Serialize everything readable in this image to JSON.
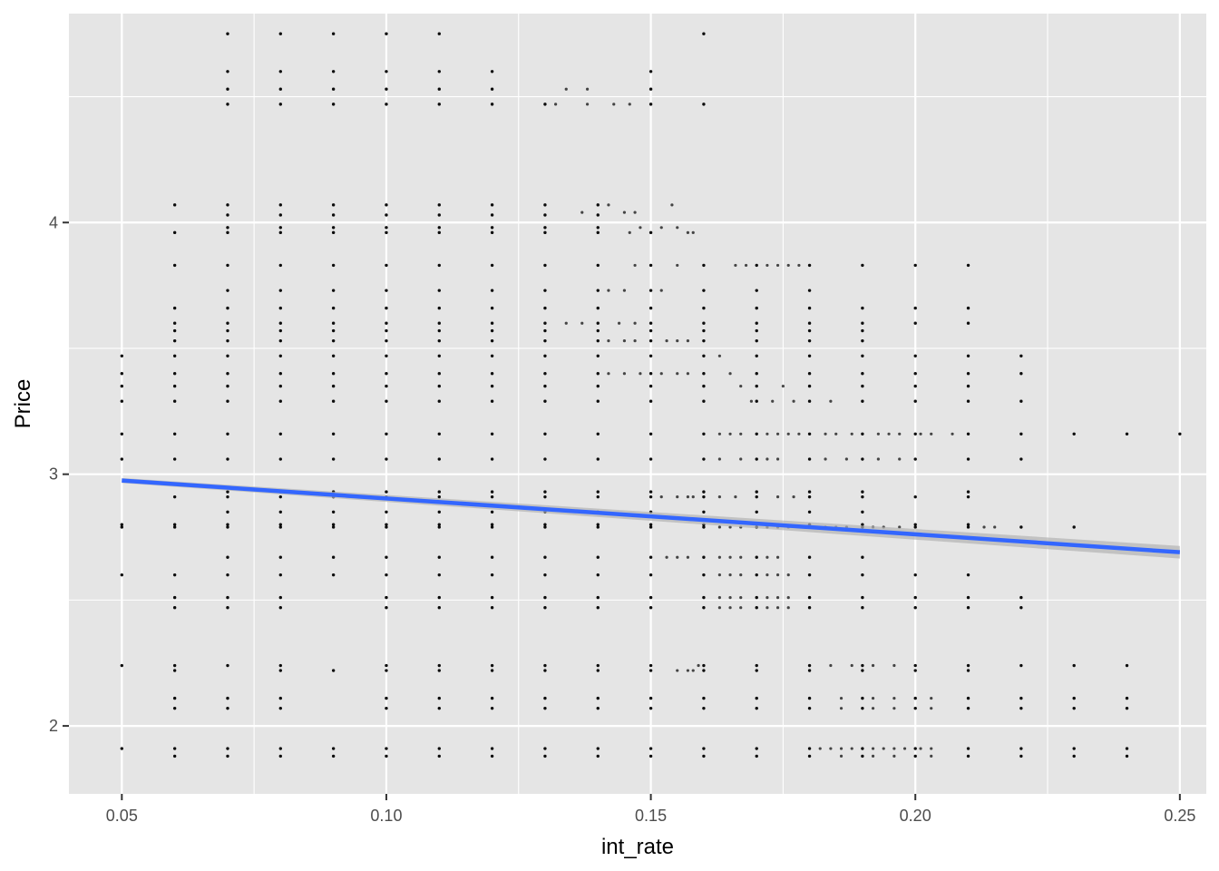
{
  "chart_data": {
    "type": "scatter",
    "title": "",
    "xlabel": "int_rate",
    "ylabel": "Price",
    "xlim": [
      0.04,
      0.255
    ],
    "ylim": [
      1.73,
      4.83
    ],
    "x_ticks": [
      0.05,
      0.1,
      0.15,
      0.2,
      0.25
    ],
    "x_tick_labels": [
      "0.05",
      "0.10",
      "0.15",
      "0.20",
      "0.25"
    ],
    "y_ticks": [
      2,
      3,
      4
    ],
    "y_tick_labels": [
      "2",
      "3",
      "4"
    ],
    "grid": true,
    "legend": "none",
    "colors": {
      "panel_background": "#e5e5e5",
      "grid": "#ffffff",
      "points": "#000000",
      "fit_line": "#3366ff",
      "confidence_band": "#b3b3b3"
    },
    "price_levels": [
      1.88,
      1.91,
      2.07,
      2.11,
      2.22,
      2.24,
      2.47,
      2.51,
      2.6,
      2.67,
      2.79,
      2.8,
      2.85,
      2.91,
      2.93,
      3.06,
      3.16,
      3.29,
      3.35,
      3.4,
      3.47,
      3.53,
      3.57,
      3.6,
      3.66,
      3.73,
      3.83,
      3.96,
      3.98,
      4.03,
      4.07,
      4.47,
      4.53,
      4.6,
      4.75
    ],
    "columns": [
      {
        "x": 0.05,
        "y": [
          1.91,
          2.24,
          2.6,
          2.79,
          2.8,
          3.06,
          3.16,
          3.29,
          3.35,
          3.4,
          3.47
        ]
      },
      {
        "x": 0.06,
        "y": [
          1.88,
          1.91,
          2.07,
          2.11,
          2.22,
          2.24,
          2.47,
          2.51,
          2.6,
          2.79,
          2.8,
          2.91,
          3.06,
          3.16,
          3.29,
          3.35,
          3.4,
          3.47,
          3.53,
          3.57,
          3.6,
          3.66,
          3.83,
          3.96,
          4.07
        ]
      },
      {
        "x": 0.07,
        "y": [
          1.88,
          1.91,
          2.07,
          2.11,
          2.24,
          2.47,
          2.51,
          2.6,
          2.67,
          2.79,
          2.8,
          2.85,
          2.91,
          2.93,
          3.06,
          3.16,
          3.29,
          3.35,
          3.4,
          3.47,
          3.53,
          3.57,
          3.6,
          3.66,
          3.73,
          3.83,
          3.96,
          3.98,
          4.03,
          4.07,
          4.47,
          4.53,
          4.6,
          4.75
        ]
      },
      {
        "x": 0.08,
        "y": [
          1.88,
          1.91,
          2.07,
          2.11,
          2.22,
          2.24,
          2.47,
          2.51,
          2.6,
          2.67,
          2.79,
          2.8,
          2.85,
          2.91,
          2.93,
          3.06,
          3.16,
          3.29,
          3.35,
          3.4,
          3.47,
          3.53,
          3.57,
          3.6,
          3.66,
          3.73,
          3.83,
          3.96,
          3.98,
          4.03,
          4.07,
          4.47,
          4.53,
          4.6,
          4.75
        ]
      },
      {
        "x": 0.09,
        "y": [
          1.88,
          1.91,
          2.22,
          2.6,
          2.67,
          2.79,
          2.8,
          2.85,
          2.91,
          2.93,
          3.06,
          3.16,
          3.29,
          3.35,
          3.4,
          3.47,
          3.53,
          3.57,
          3.6,
          3.66,
          3.73,
          3.83,
          3.96,
          3.98,
          4.03,
          4.07,
          4.47,
          4.53,
          4.6,
          4.75
        ]
      },
      {
        "x": 0.1,
        "y": [
          1.88,
          1.91,
          2.07,
          2.11,
          2.22,
          2.24,
          2.47,
          2.51,
          2.6,
          2.67,
          2.79,
          2.8,
          2.85,
          2.91,
          2.93,
          3.06,
          3.16,
          3.29,
          3.35,
          3.4,
          3.47,
          3.53,
          3.57,
          3.6,
          3.66,
          3.73,
          3.83,
          3.96,
          3.98,
          4.03,
          4.07,
          4.47,
          4.53,
          4.6,
          4.75
        ]
      },
      {
        "x": 0.11,
        "y": [
          1.88,
          1.91,
          2.07,
          2.11,
          2.22,
          2.24,
          2.47,
          2.51,
          2.6,
          2.67,
          2.79,
          2.8,
          2.85,
          2.91,
          2.93,
          3.06,
          3.16,
          3.29,
          3.35,
          3.4,
          3.47,
          3.53,
          3.57,
          3.6,
          3.66,
          3.73,
          3.83,
          3.96,
          3.98,
          4.03,
          4.07,
          4.47,
          4.53,
          4.6,
          4.75
        ]
      },
      {
        "x": 0.12,
        "y": [
          1.88,
          1.91,
          2.07,
          2.11,
          2.22,
          2.24,
          2.47,
          2.51,
          2.6,
          2.67,
          2.79,
          2.8,
          2.85,
          2.91,
          2.93,
          3.06,
          3.16,
          3.29,
          3.35,
          3.4,
          3.47,
          3.53,
          3.57,
          3.6,
          3.66,
          3.73,
          3.83,
          3.96,
          3.98,
          4.03,
          4.07,
          4.47,
          4.53,
          4.6
        ]
      },
      {
        "x": 0.13,
        "y": [
          1.88,
          1.91,
          2.07,
          2.11,
          2.22,
          2.24,
          2.47,
          2.51,
          2.6,
          2.67,
          2.79,
          2.8,
          2.85,
          2.91,
          2.93,
          3.06,
          3.16,
          3.29,
          3.35,
          3.4,
          3.47,
          3.53,
          3.57,
          3.6,
          3.66,
          3.73,
          3.83,
          3.96,
          3.98,
          4.03,
          4.07,
          4.47
        ]
      },
      {
        "x": 0.14,
        "y": [
          1.88,
          1.91,
          2.07,
          2.11,
          2.22,
          2.24,
          2.47,
          2.51,
          2.6,
          2.67,
          2.79,
          2.8,
          2.85,
          2.91,
          2.93,
          3.06,
          3.16,
          3.29,
          3.35,
          3.4,
          3.47,
          3.53,
          3.57,
          3.6,
          3.66,
          3.73,
          3.83,
          3.96,
          3.98,
          4.03,
          4.07
        ]
      },
      {
        "x": 0.15,
        "y": [
          1.88,
          1.91,
          2.07,
          2.11,
          2.22,
          2.24,
          2.47,
          2.51,
          2.6,
          2.67,
          2.79,
          2.8,
          2.85,
          2.91,
          2.93,
          3.06,
          3.16,
          3.29,
          3.35,
          3.4,
          3.47,
          3.53,
          3.57,
          3.6,
          3.66,
          3.73,
          3.83,
          3.96,
          4.47,
          4.53,
          4.6
        ]
      },
      {
        "x": 0.16,
        "y": [
          1.88,
          1.91,
          2.07,
          2.11,
          2.22,
          2.24,
          2.47,
          2.51,
          2.6,
          2.67,
          2.79,
          2.8,
          2.85,
          2.91,
          2.93,
          3.06,
          3.16,
          3.29,
          3.35,
          3.4,
          3.47,
          3.53,
          3.57,
          3.6,
          3.66,
          3.73,
          3.83,
          4.47,
          4.75
        ]
      },
      {
        "x": 0.17,
        "y": [
          1.88,
          1.91,
          2.07,
          2.11,
          2.22,
          2.24,
          2.47,
          2.51,
          2.6,
          2.67,
          2.79,
          2.8,
          2.85,
          2.91,
          2.93,
          3.06,
          3.16,
          3.29,
          3.35,
          3.4,
          3.47,
          3.53,
          3.57,
          3.6,
          3.66,
          3.73,
          3.83
        ]
      },
      {
        "x": 0.18,
        "y": [
          1.88,
          1.91,
          2.07,
          2.11,
          2.22,
          2.24,
          2.47,
          2.51,
          2.6,
          2.67,
          2.79,
          2.8,
          2.85,
          2.91,
          2.93,
          3.06,
          3.16,
          3.29,
          3.35,
          3.4,
          3.47,
          3.53,
          3.57,
          3.6,
          3.66,
          3.73,
          3.83
        ]
      },
      {
        "x": 0.19,
        "y": [
          1.88,
          1.91,
          2.07,
          2.11,
          2.22,
          2.24,
          2.47,
          2.51,
          2.6,
          2.67,
          2.79,
          2.8,
          2.85,
          2.91,
          2.93,
          3.06,
          3.16,
          3.29,
          3.35,
          3.4,
          3.47,
          3.53,
          3.57,
          3.6,
          3.66,
          3.83
        ]
      },
      {
        "x": 0.2,
        "y": [
          1.88,
          1.91,
          2.07,
          2.11,
          2.22,
          2.24,
          2.47,
          2.51,
          2.6,
          2.79,
          2.8,
          2.91,
          3.06,
          3.16,
          3.29,
          3.35,
          3.4,
          3.47,
          3.6,
          3.66,
          3.83
        ]
      },
      {
        "x": 0.21,
        "y": [
          1.88,
          1.91,
          2.07,
          2.11,
          2.22,
          2.24,
          2.47,
          2.51,
          2.6,
          2.79,
          2.8,
          2.91,
          2.93,
          3.06,
          3.16,
          3.29,
          3.35,
          3.4,
          3.47,
          3.6,
          3.66,
          3.83
        ]
      },
      {
        "x": 0.22,
        "y": [
          1.88,
          1.91,
          2.07,
          2.11,
          2.24,
          2.47,
          2.51,
          2.79,
          3.06,
          3.16,
          3.29,
          3.4,
          3.47
        ]
      },
      {
        "x": 0.23,
        "y": [
          1.88,
          1.91,
          2.07,
          2.11,
          2.24,
          2.79,
          3.16
        ]
      },
      {
        "x": 0.24,
        "y": [
          1.88,
          1.91,
          2.07,
          2.11,
          2.24,
          3.16
        ]
      },
      {
        "x": 0.25,
        "y": [
          3.16
        ]
      }
    ],
    "scattered_points": [
      {
        "x": 0.132,
        "y": 4.47
      },
      {
        "x": 0.134,
        "y": 4.53
      },
      {
        "x": 0.138,
        "y": 4.53
      },
      {
        "x": 0.138,
        "y": 4.47
      },
      {
        "x": 0.143,
        "y": 4.47
      },
      {
        "x": 0.146,
        "y": 4.47
      },
      {
        "x": 0.137,
        "y": 4.04
      },
      {
        "x": 0.142,
        "y": 4.07
      },
      {
        "x": 0.145,
        "y": 4.04
      },
      {
        "x": 0.147,
        "y": 4.04
      },
      {
        "x": 0.146,
        "y": 3.96
      },
      {
        "x": 0.148,
        "y": 3.98
      },
      {
        "x": 0.152,
        "y": 3.98
      },
      {
        "x": 0.154,
        "y": 4.07
      },
      {
        "x": 0.155,
        "y": 3.98
      },
      {
        "x": 0.157,
        "y": 3.96
      },
      {
        "x": 0.158,
        "y": 3.96
      },
      {
        "x": 0.147,
        "y": 3.83
      },
      {
        "x": 0.155,
        "y": 3.83
      },
      {
        "x": 0.142,
        "y": 3.73
      },
      {
        "x": 0.145,
        "y": 3.73
      },
      {
        "x": 0.152,
        "y": 3.73
      },
      {
        "x": 0.134,
        "y": 3.6
      },
      {
        "x": 0.137,
        "y": 3.6
      },
      {
        "x": 0.144,
        "y": 3.6
      },
      {
        "x": 0.147,
        "y": 3.6
      },
      {
        "x": 0.142,
        "y": 3.53
      },
      {
        "x": 0.145,
        "y": 3.53
      },
      {
        "x": 0.147,
        "y": 3.53
      },
      {
        "x": 0.153,
        "y": 3.53
      },
      {
        "x": 0.155,
        "y": 3.53
      },
      {
        "x": 0.157,
        "y": 3.53
      },
      {
        "x": 0.142,
        "y": 3.4
      },
      {
        "x": 0.145,
        "y": 3.4
      },
      {
        "x": 0.148,
        "y": 3.4
      },
      {
        "x": 0.152,
        "y": 3.4
      },
      {
        "x": 0.155,
        "y": 3.4
      },
      {
        "x": 0.157,
        "y": 3.4
      },
      {
        "x": 0.163,
        "y": 3.47
      },
      {
        "x": 0.165,
        "y": 3.4
      },
      {
        "x": 0.167,
        "y": 3.35
      },
      {
        "x": 0.169,
        "y": 3.29
      },
      {
        "x": 0.173,
        "y": 3.29
      },
      {
        "x": 0.175,
        "y": 3.35
      },
      {
        "x": 0.177,
        "y": 3.29
      },
      {
        "x": 0.184,
        "y": 3.29
      },
      {
        "x": 0.166,
        "y": 3.83
      },
      {
        "x": 0.168,
        "y": 3.83
      },
      {
        "x": 0.172,
        "y": 3.83
      },
      {
        "x": 0.174,
        "y": 3.83
      },
      {
        "x": 0.176,
        "y": 3.83
      },
      {
        "x": 0.178,
        "y": 3.83
      },
      {
        "x": 0.163,
        "y": 3.16
      },
      {
        "x": 0.165,
        "y": 3.16
      },
      {
        "x": 0.167,
        "y": 3.16
      },
      {
        "x": 0.172,
        "y": 3.16
      },
      {
        "x": 0.174,
        "y": 3.16
      },
      {
        "x": 0.176,
        "y": 3.16
      },
      {
        "x": 0.178,
        "y": 3.16
      },
      {
        "x": 0.183,
        "y": 3.16
      },
      {
        "x": 0.185,
        "y": 3.16
      },
      {
        "x": 0.188,
        "y": 3.16
      },
      {
        "x": 0.193,
        "y": 3.16
      },
      {
        "x": 0.195,
        "y": 3.16
      },
      {
        "x": 0.197,
        "y": 3.16
      },
      {
        "x": 0.201,
        "y": 3.16
      },
      {
        "x": 0.203,
        "y": 3.16
      },
      {
        "x": 0.207,
        "y": 3.16
      },
      {
        "x": 0.163,
        "y": 3.06
      },
      {
        "x": 0.167,
        "y": 3.06
      },
      {
        "x": 0.172,
        "y": 3.06
      },
      {
        "x": 0.174,
        "y": 3.06
      },
      {
        "x": 0.183,
        "y": 3.06
      },
      {
        "x": 0.187,
        "y": 3.06
      },
      {
        "x": 0.193,
        "y": 3.06
      },
      {
        "x": 0.197,
        "y": 3.06
      },
      {
        "x": 0.163,
        "y": 2.91
      },
      {
        "x": 0.166,
        "y": 2.91
      },
      {
        "x": 0.174,
        "y": 2.91
      },
      {
        "x": 0.177,
        "y": 2.91
      },
      {
        "x": 0.152,
        "y": 2.91
      },
      {
        "x": 0.155,
        "y": 2.91
      },
      {
        "x": 0.157,
        "y": 2.91
      },
      {
        "x": 0.158,
        "y": 2.91
      },
      {
        "x": 0.163,
        "y": 2.79
      },
      {
        "x": 0.165,
        "y": 2.79
      },
      {
        "x": 0.167,
        "y": 2.79
      },
      {
        "x": 0.172,
        "y": 2.79
      },
      {
        "x": 0.174,
        "y": 2.79
      },
      {
        "x": 0.176,
        "y": 2.79
      },
      {
        "x": 0.183,
        "y": 2.79
      },
      {
        "x": 0.185,
        "y": 2.79
      },
      {
        "x": 0.187,
        "y": 2.79
      },
      {
        "x": 0.192,
        "y": 2.79
      },
      {
        "x": 0.194,
        "y": 2.79
      },
      {
        "x": 0.197,
        "y": 2.79
      },
      {
        "x": 0.213,
        "y": 2.79
      },
      {
        "x": 0.215,
        "y": 2.79
      },
      {
        "x": 0.153,
        "y": 2.67
      },
      {
        "x": 0.155,
        "y": 2.67
      },
      {
        "x": 0.157,
        "y": 2.67
      },
      {
        "x": 0.163,
        "y": 2.67
      },
      {
        "x": 0.165,
        "y": 2.67
      },
      {
        "x": 0.167,
        "y": 2.67
      },
      {
        "x": 0.172,
        "y": 2.67
      },
      {
        "x": 0.174,
        "y": 2.67
      },
      {
        "x": 0.163,
        "y": 2.6
      },
      {
        "x": 0.165,
        "y": 2.6
      },
      {
        "x": 0.167,
        "y": 2.6
      },
      {
        "x": 0.172,
        "y": 2.6
      },
      {
        "x": 0.174,
        "y": 2.6
      },
      {
        "x": 0.176,
        "y": 2.6
      },
      {
        "x": 0.163,
        "y": 2.51
      },
      {
        "x": 0.165,
        "y": 2.51
      },
      {
        "x": 0.167,
        "y": 2.51
      },
      {
        "x": 0.172,
        "y": 2.51
      },
      {
        "x": 0.174,
        "y": 2.51
      },
      {
        "x": 0.176,
        "y": 2.51
      },
      {
        "x": 0.163,
        "y": 2.47
      },
      {
        "x": 0.165,
        "y": 2.47
      },
      {
        "x": 0.167,
        "y": 2.47
      },
      {
        "x": 0.172,
        "y": 2.47
      },
      {
        "x": 0.174,
        "y": 2.47
      },
      {
        "x": 0.176,
        "y": 2.47
      },
      {
        "x": 0.155,
        "y": 2.22
      },
      {
        "x": 0.157,
        "y": 2.22
      },
      {
        "x": 0.158,
        "y": 2.22
      },
      {
        "x": 0.159,
        "y": 2.24
      },
      {
        "x": 0.184,
        "y": 2.24
      },
      {
        "x": 0.188,
        "y": 2.24
      },
      {
        "x": 0.192,
        "y": 2.24
      },
      {
        "x": 0.196,
        "y": 2.24
      },
      {
        "x": 0.186,
        "y": 2.11
      },
      {
        "x": 0.186,
        "y": 2.07
      },
      {
        "x": 0.192,
        "y": 2.11
      },
      {
        "x": 0.192,
        "y": 2.07
      },
      {
        "x": 0.196,
        "y": 2.11
      },
      {
        "x": 0.196,
        "y": 2.07
      },
      {
        "x": 0.203,
        "y": 2.11
      },
      {
        "x": 0.203,
        "y": 2.07
      },
      {
        "x": 0.182,
        "y": 1.91
      },
      {
        "x": 0.184,
        "y": 1.91
      },
      {
        "x": 0.186,
        "y": 1.91
      },
      {
        "x": 0.188,
        "y": 1.91
      },
      {
        "x": 0.192,
        "y": 1.91
      },
      {
        "x": 0.194,
        "y": 1.91
      },
      {
        "x": 0.196,
        "y": 1.91
      },
      {
        "x": 0.198,
        "y": 1.91
      },
      {
        "x": 0.201,
        "y": 1.91
      },
      {
        "x": 0.203,
        "y": 1.91
      },
      {
        "x": 0.186,
        "y": 1.88
      },
      {
        "x": 0.192,
        "y": 1.88
      },
      {
        "x": 0.196,
        "y": 1.88
      },
      {
        "x": 0.203,
        "y": 1.88
      }
    ],
    "fit_line": {
      "method": "linear",
      "x": [
        0.05,
        0.25
      ],
      "y": [
        2.975,
        2.69
      ],
      "confidence_band": {
        "x": [
          0.05,
          0.25
        ],
        "lower": [
          2.965,
          2.665
        ],
        "upper": [
          2.985,
          2.715
        ]
      }
    }
  }
}
